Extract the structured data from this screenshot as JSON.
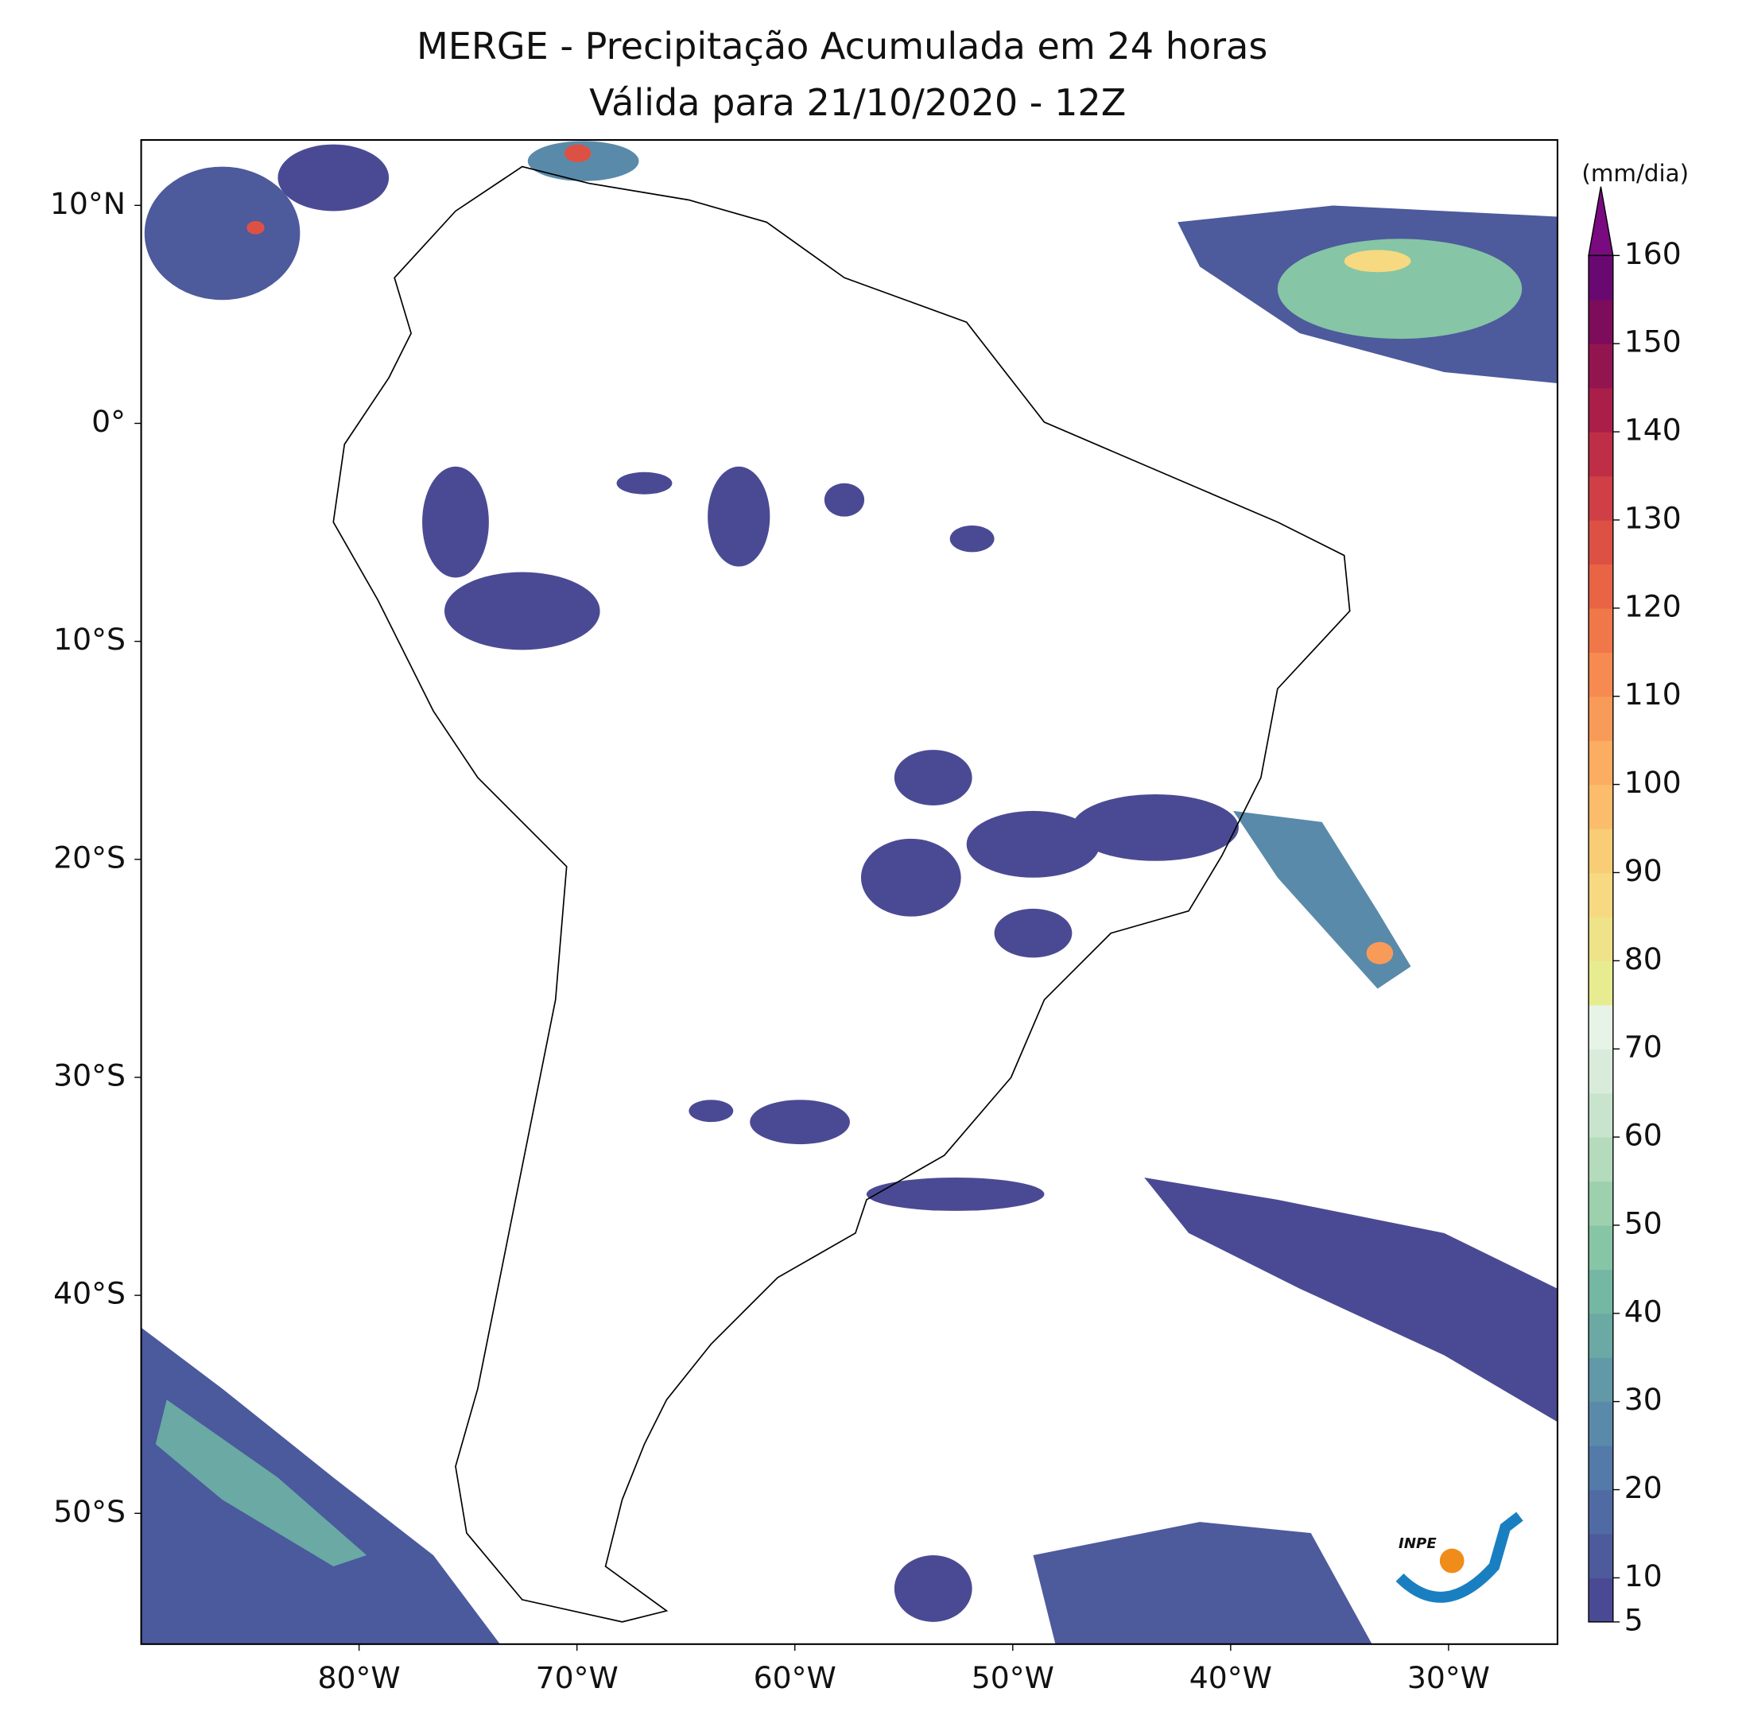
{
  "title": [
    "MERGE - Precipitação Acumulada em 24 horas",
    "Válida para 21/10/2020 - 12Z"
  ],
  "map": {
    "lonlim": [
      -90,
      -25
    ],
    "latlim": [
      -56,
      13
    ],
    "lat_ticks": [
      {
        "value": 10,
        "label": "10°N"
      },
      {
        "value": 0,
        "label": "0°"
      },
      {
        "value": -10,
        "label": "10°S"
      },
      {
        "value": -20,
        "label": "20°S"
      },
      {
        "value": -30,
        "label": "30°S"
      },
      {
        "value": -40,
        "label": "40°S"
      },
      {
        "value": -50,
        "label": "50°S"
      }
    ],
    "lon_ticks": [
      {
        "value": -80,
        "label": "80°W"
      },
      {
        "value": -70,
        "label": "70°W"
      },
      {
        "value": -60,
        "label": "60°W"
      },
      {
        "value": -50,
        "label": "50°W"
      },
      {
        "value": -40,
        "label": "40°W"
      },
      {
        "value": -30,
        "label": "30°W"
      }
    ]
  },
  "colorbar": {
    "unit": "(mm/dia)",
    "range": [
      5,
      160
    ],
    "ticks": [
      5,
      10,
      20,
      30,
      40,
      50,
      60,
      70,
      80,
      90,
      100,
      110,
      120,
      130,
      140,
      150,
      160
    ],
    "colors": [
      "#4a4a94",
      "#4d5a9c",
      "#506aa3",
      "#537aa8",
      "#5a8aaa",
      "#6199a8",
      "#6aa9a4",
      "#74b8a3",
      "#86c5a5",
      "#9dd0ad",
      "#b3dbbc",
      "#c8e4cd",
      "#d9ecdc",
      "#e8f3e8",
      "#e8ec90",
      "#efe38a",
      "#f6d980",
      "#f9cc76",
      "#fbbd6b",
      "#fbad61",
      "#f99b58",
      "#f68a50",
      "#f07749",
      "#e86445",
      "#dd5144",
      "#cf3f45",
      "#be2e47",
      "#a91f4a",
      "#931550",
      "#7d0d5a",
      "#6a0872"
    ],
    "extend_color": "#7a0a80"
  },
  "logo": "INPE"
}
